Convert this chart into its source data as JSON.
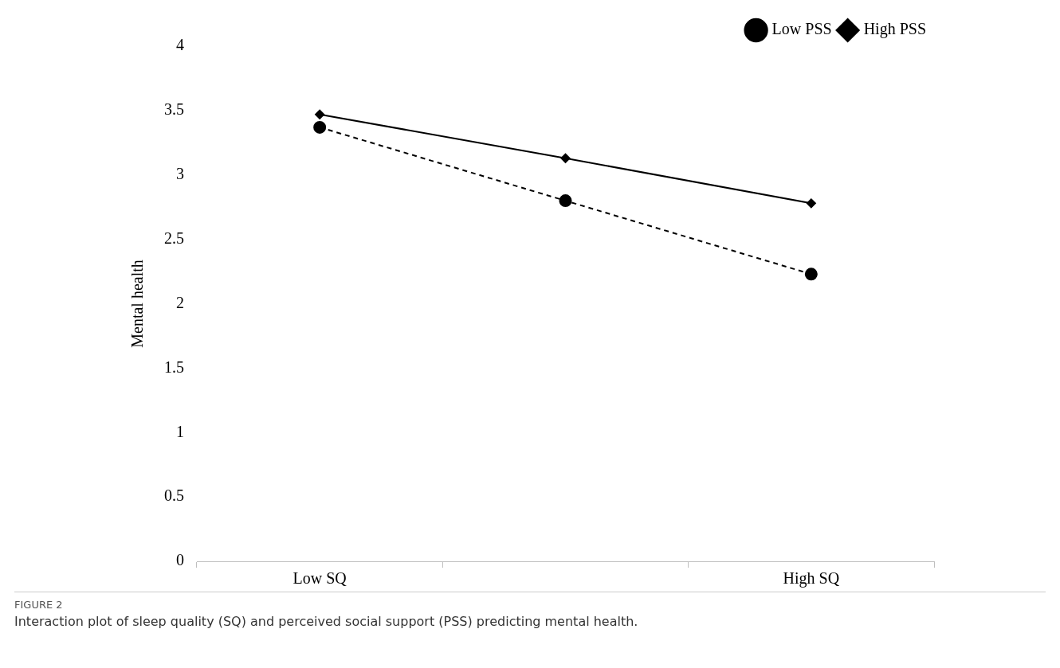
{
  "chart_data": {
    "type": "line",
    "ylabel": "Mental health",
    "categories": [
      "Low SQ",
      null,
      "High SQ"
    ],
    "series": [
      {
        "name": "Low PSS",
        "color": "#000000",
        "values": [
          3.37,
          2.8,
          2.23
        ],
        "marker": "circle",
        "line_style": "dashed"
      },
      {
        "name": "High PSS",
        "color": "#000000",
        "values": [
          3.47,
          3.13,
          2.78
        ],
        "marker": "diamond",
        "line_style": "solid"
      }
    ],
    "ylim": [
      0,
      4
    ],
    "yticks": [
      0,
      0.5,
      1,
      1.5,
      2,
      2.5,
      3,
      3.5,
      4
    ],
    "grid": false,
    "legend": "top right",
    "annotations": [
      "FIGURE 2",
      "Interaction plot of sleep quality (SQ) and perceived social support (PSS) predicting mental health."
    ]
  }
}
